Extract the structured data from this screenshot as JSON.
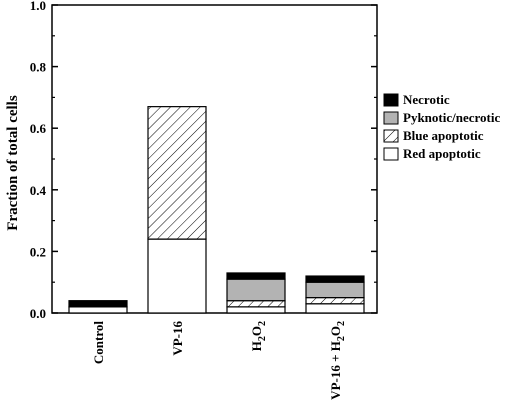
{
  "chart_data": {
    "type": "bar",
    "stacked": true,
    "title": "",
    "xlabel": "",
    "ylabel": "Fraction of total cells",
    "ylim": [
      0,
      1.0
    ],
    "yticks": [
      "0.0",
      "0.2",
      "0.4",
      "0.6",
      "0.8",
      "1.0"
    ],
    "ytick_values": [
      0,
      0.2,
      0.4,
      0.6,
      0.8,
      1.0
    ],
    "categories": [
      {
        "main": "Control",
        "sub": ""
      },
      {
        "main": "VP-16",
        "sub": ""
      },
      {
        "main": "H",
        "sub": "2",
        "tail": "O",
        "sub2": "2"
      },
      {
        "main": "VP-16 + H",
        "sub": "2",
        "tail": "O",
        "sub2": "2"
      }
    ],
    "series": [
      {
        "name": "Red apoptotic",
        "fill": "white",
        "values": [
          0.02,
          0.24,
          0.02,
          0.03
        ]
      },
      {
        "name": "Blue apoptotic",
        "fill": "hatch",
        "values": [
          0.0,
          0.43,
          0.02,
          0.02
        ]
      },
      {
        "name": "Pyknotic/necrotic",
        "fill": "gray",
        "values": [
          0.0,
          0.0,
          0.07,
          0.05
        ]
      },
      {
        "name": "Necrotic",
        "fill": "black",
        "values": [
          0.02,
          0.0,
          0.02,
          0.02
        ]
      }
    ],
    "legend": {
      "placement": "right",
      "order": [
        "Necrotic",
        "Pyknotic/necrotic",
        "Blue apoptotic",
        "Red apoptotic"
      ]
    },
    "grid": false,
    "colors": {
      "gray": "#b3b3b3",
      "black": "#000000",
      "white": "#ffffff"
    }
  }
}
